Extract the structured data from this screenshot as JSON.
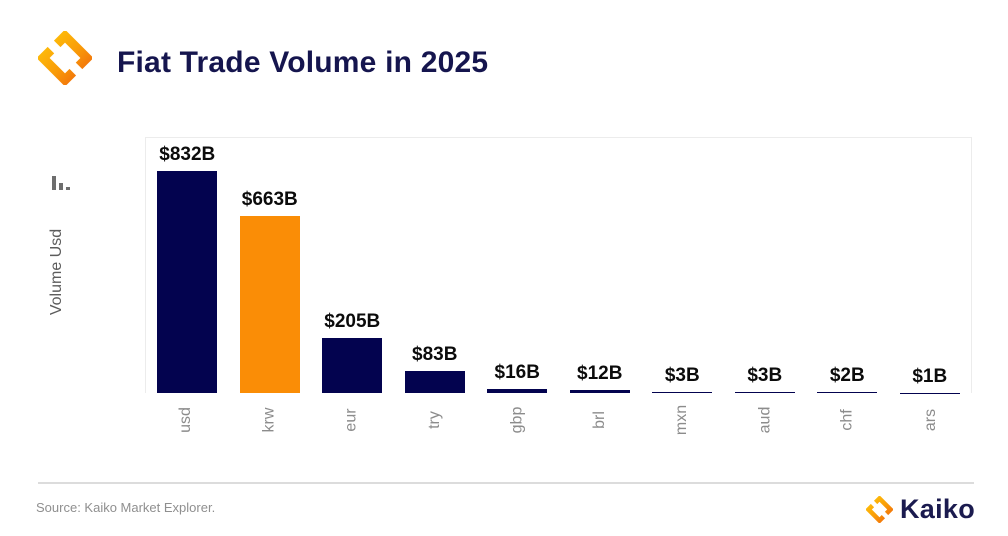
{
  "header": {
    "title": "Fiat Trade Volume in 2025"
  },
  "chart_data": {
    "type": "bar",
    "title": "Fiat Trade Volume in 2025",
    "xlabel": "",
    "ylabel": "Volume Usd",
    "categories": [
      "usd",
      "krw",
      "eur",
      "try",
      "gbp",
      "brl",
      "mxn",
      "aud",
      "chf",
      "ars"
    ],
    "values": [
      832,
      663,
      205,
      83,
      16,
      12,
      3,
      3,
      2,
      1
    ],
    "data_labels": [
      "$832B",
      "$663B",
      "$205B",
      "$83B",
      "$16B",
      "$12B",
      "$3B",
      "$3B",
      "$2B",
      "$1B"
    ],
    "colors": [
      "#03034f",
      "#fa8d06",
      "#03034f",
      "#03034f",
      "#03034f",
      "#03034f",
      "#03034f",
      "#03034f",
      "#03034f",
      "#03034f"
    ],
    "ylim": [
      0,
      960
    ],
    "grid": false,
    "legend": "none"
  },
  "colors": {
    "bar_navy": "#03034f",
    "bar_orange": "#fa8d06",
    "title_navy": "#15154e",
    "brand_orange": "#f6820c",
    "brand_yellow": "#ffc50a"
  },
  "footer": {
    "source": "Source: Kaiko Market Explorer.",
    "brand": "Kaiko"
  }
}
